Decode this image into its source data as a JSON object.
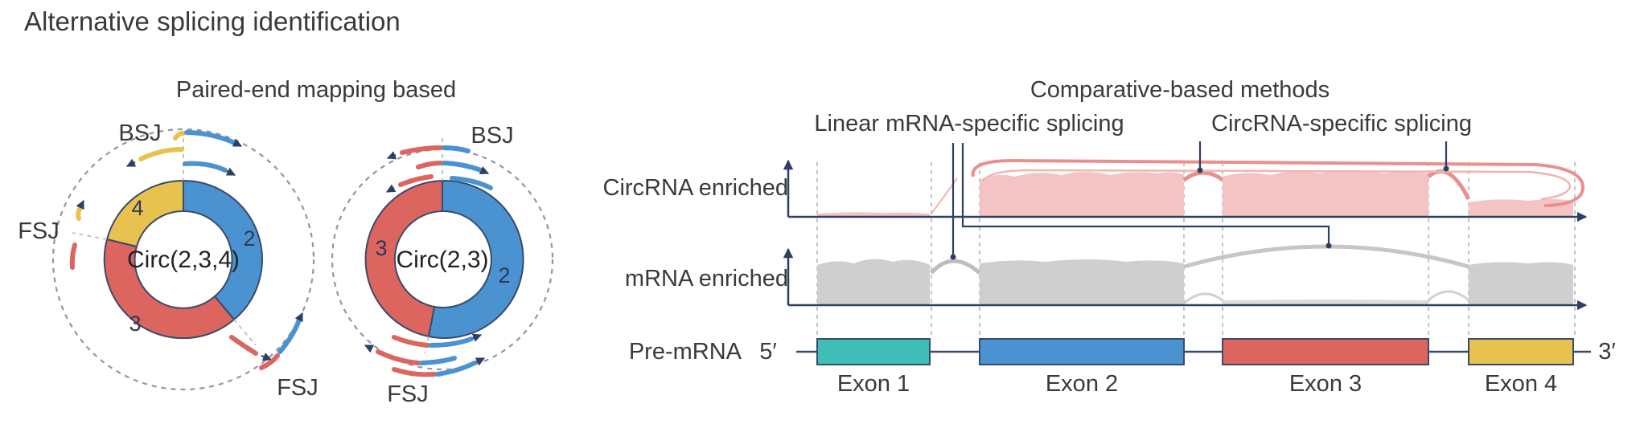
{
  "title": "Alternative splicing identification",
  "left_panel": {
    "heading": "Paired-end mapping based",
    "circ1": {
      "label": "Circ(2,3,4)",
      "segments": [
        "2",
        "3",
        "4"
      ],
      "bsj": "BSJ",
      "fsj_left": "FSJ",
      "fsj_bottom": "FSJ"
    },
    "circ2": {
      "label": "Circ(2,3)",
      "segments": [
        "2",
        "3"
      ],
      "bsj": "BSJ",
      "fsj": "FSJ"
    }
  },
  "right_panel": {
    "heading": "Comparative-based methods",
    "callout_linear": "Linear mRNA-specific splicing",
    "callout_circ": "CircRNA-specific splicing",
    "track_circ": "CircRNA enriched",
    "track_mrna": "mRNA enriched",
    "track_pre": "Pre-mRNA",
    "five_prime": "5′",
    "three_prime": "3′",
    "exons": [
      "Exon 1",
      "Exon 2",
      "Exon 3",
      "Exon 4"
    ]
  },
  "colors": {
    "exon1": "#3dbfb8",
    "exon2": "#4a93d0",
    "exon3": "#dc6560",
    "exon4": "#e8c24f",
    "circ_cov": "#f4c4c4",
    "circ_arc": "#e9908c",
    "mrna_cov": "#cfcfcf",
    "axis": "#2e3f63"
  }
}
